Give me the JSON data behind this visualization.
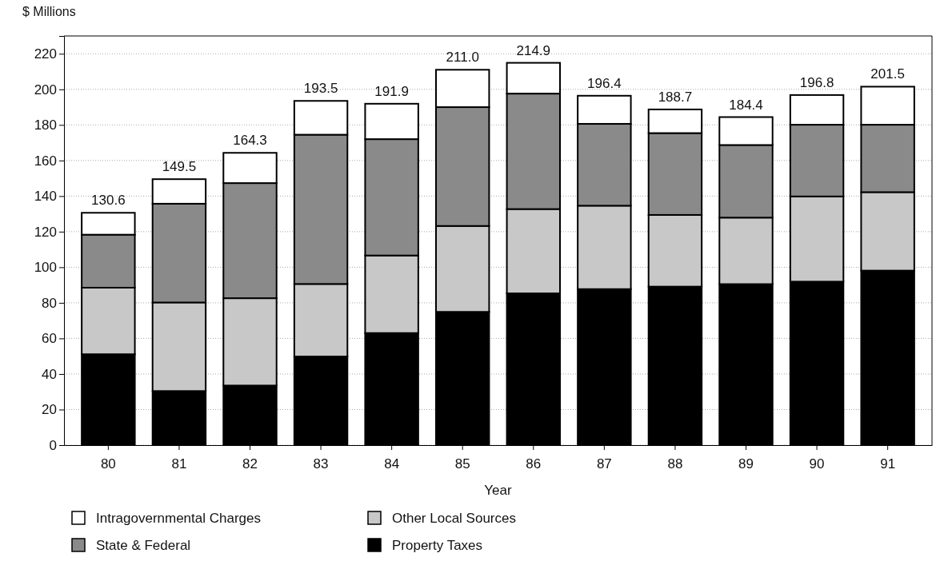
{
  "chart_data": {
    "type": "bar",
    "stacked": true,
    "ylabel": "$ Millions",
    "xlabel": "Year",
    "categories": [
      "80",
      "81",
      "82",
      "83",
      "84",
      "85",
      "86",
      "87",
      "88",
      "89",
      "90",
      "91"
    ],
    "series": [
      {
        "name": "Property Taxes",
        "color": "#000000",
        "values": [
          51.1,
          30.4,
          33.5,
          49.8,
          63.0,
          74.9,
          85.3,
          87.7,
          89.1,
          90.5,
          91.9,
          98.1
        ]
      },
      {
        "name": "Other Local Sources",
        "color": "#c8c8c8",
        "values": [
          37.4,
          49.8,
          49.1,
          40.8,
          43.6,
          48.3,
          47.4,
          46.9,
          40.3,
          37.4,
          47.9,
          44.1
        ]
      },
      {
        "name": "State & Federal",
        "color": "#8a8a8a",
        "values": [
          29.8,
          55.5,
          64.7,
          83.9,
          65.4,
          66.8,
          64.9,
          46.0,
          46.0,
          40.8,
          40.3,
          37.9
        ]
      },
      {
        "name": "Intragovernmental Charges",
        "color": "#ffffff",
        "values": [
          12.3,
          13.8,
          17.0,
          19.0,
          19.9,
          21.0,
          17.3,
          15.8,
          13.3,
          15.7,
          16.7,
          21.4
        ]
      }
    ],
    "totals": [
      "130.6",
      "149.5",
      "164.3",
      "193.5",
      "191.9",
      "211.0",
      "214.9",
      "196.4",
      "188.7",
      "184.4",
      "196.8",
      "201.5"
    ],
    "ylim": [
      0,
      230
    ],
    "yticks": [
      0,
      20,
      40,
      60,
      80,
      100,
      120,
      140,
      160,
      180,
      200,
      220
    ],
    "grid": "y",
    "legend": "bottom"
  }
}
